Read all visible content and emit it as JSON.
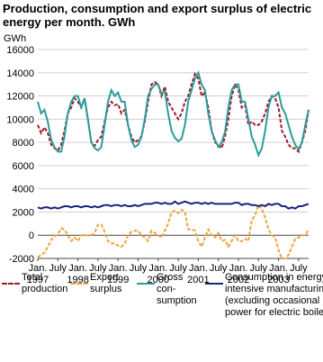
{
  "chart_data": {
    "type": "line",
    "title": "Production, consumption and export surplus of electric energy per month. GWh",
    "y_unit": "GWh",
    "categories": [
      "Jan.",
      null,
      null,
      null,
      null,
      null,
      "July",
      null,
      null,
      null,
      null,
      null,
      "Jan.",
      null,
      null,
      null,
      null,
      null,
      "July",
      null,
      null,
      null,
      null,
      null,
      "Jan.",
      null,
      null,
      null,
      null,
      null,
      "July",
      null,
      null,
      null,
      null,
      null,
      "Jan.",
      null,
      null,
      null,
      null,
      null,
      "July",
      null,
      null,
      null,
      null,
      null,
      "Jan.",
      null,
      null,
      null,
      null,
      null,
      "July",
      null,
      null,
      null,
      null,
      null,
      "Jan.",
      null,
      null,
      null,
      null,
      null,
      "July",
      null,
      null,
      null,
      null,
      null,
      "Jan.",
      null,
      null,
      null,
      null,
      null,
      "July",
      null,
      null,
      null
    ],
    "year_labels": [
      "1997",
      "1998",
      "1999",
      "2000",
      "2001",
      "2002",
      "2003"
    ],
    "ylim": [
      -2000,
      16000
    ],
    "yticks": [
      -2000,
      0,
      2000,
      4000,
      6000,
      8000,
      10000,
      12000,
      14000,
      16000
    ],
    "grid": true,
    "series": [
      {
        "name": "Total production",
        "color": "#a0192a",
        "dashed": true,
        "values": [
          9500,
          8800,
          9300,
          8800,
          7800,
          7500,
          7300,
          7800,
          9000,
          10500,
          11000,
          11800,
          11500,
          11000,
          11800,
          10000,
          8000,
          7700,
          8200,
          8500,
          9800,
          11000,
          11500,
          11200,
          11300,
          10500,
          10800,
          9500,
          8500,
          8000,
          8200,
          8500,
          9800,
          11500,
          13000,
          13200,
          13000,
          12000,
          12800,
          11500,
          11000,
          10500,
          10000,
          10500,
          11500,
          12000,
          13000,
          13900,
          13500,
          12000,
          12300,
          11000,
          9000,
          8000,
          7800,
          7500,
          8500,
          10000,
          12000,
          13000,
          12500,
          11000,
          11200,
          9500,
          9800,
          9500,
          9500,
          9800,
          10500,
          11500,
          12000,
          11800,
          11000,
          9000,
          8500,
          7800,
          7500,
          7500,
          7200,
          8000,
          9000,
          10800
        ]
      },
      {
        "name": "Export surplus",
        "color": "#f2a33a",
        "dashed": true,
        "values": [
          -1900,
          -1700,
          -1500,
          -1000,
          -400,
          -100,
          100,
          600,
          500,
          0,
          -500,
          -200,
          -500,
          0,
          0,
          0,
          0,
          200,
          900,
          900,
          300,
          -500,
          -700,
          -700,
          -900,
          -1000,
          -700,
          0,
          300,
          400,
          400,
          0,
          -200,
          -500,
          400,
          200,
          0,
          -200,
          400,
          1000,
          2000,
          2100,
          1900,
          2200,
          2000,
          500,
          500,
          400,
          -500,
          -1000,
          -200,
          500,
          0,
          -200,
          200,
          -500,
          -400,
          -1000,
          -500,
          0,
          -500,
          -500,
          -300,
          -500,
          1300,
          1700,
          2600,
          2300,
          1500,
          500,
          0,
          -200,
          -1300,
          -2000,
          -2000,
          -1700,
          -1000,
          -300,
          -200,
          0,
          0,
          500
        ]
      },
      {
        "name": "Gross con-sumption",
        "color": "#2a9d9a",
        "dashed": false,
        "values": [
          11500,
          10500,
          10800,
          9800,
          8200,
          7600,
          7200,
          7200,
          8500,
          10500,
          11500,
          12000,
          12000,
          11000,
          11800,
          10000,
          8000,
          7500,
          7300,
          7600,
          9500,
          11500,
          12500,
          12000,
          12300,
          11500,
          11500,
          9500,
          8200,
          7600,
          7800,
          8500,
          10000,
          12000,
          12600,
          13000,
          13000,
          12200,
          12400,
          10500,
          9000,
          8400,
          8100,
          8300,
          9500,
          11500,
          12500,
          13500,
          14000,
          13000,
          12500,
          10500,
          9000,
          8200,
          7600,
          8000,
          8900,
          11000,
          12500,
          13000,
          13000,
          11500,
          11500,
          10000,
          8500,
          7800,
          6900,
          7500,
          9000,
          11000,
          12000,
          12000,
          12300,
          11000,
          10500,
          9500,
          8500,
          7800,
          7400,
          8000,
          9500,
          10800
        ]
      },
      {
        "name": "Consumption in energy-intensive manufacturing (excluding occasional power for electric boilers)",
        "color": "#1a237e",
        "dashed": false,
        "values": [
          2400,
          2300,
          2400,
          2400,
          2300,
          2400,
          2300,
          2400,
          2500,
          2500,
          2400,
          2500,
          2500,
          2400,
          2500,
          2500,
          2400,
          2500,
          2400,
          2500,
          2600,
          2600,
          2500,
          2600,
          2600,
          2500,
          2600,
          2500,
          2500,
          2600,
          2500,
          2600,
          2700,
          2700,
          2700,
          2800,
          2800,
          2700,
          2800,
          2700,
          2700,
          2900,
          2700,
          2800,
          2900,
          2800,
          2700,
          2800,
          2800,
          2700,
          2800,
          2700,
          2800,
          2700,
          2700,
          2700,
          2700,
          2700,
          2700,
          2800,
          2800,
          2600,
          2700,
          2700,
          2600,
          2600,
          2500,
          2600,
          2500,
          2700,
          2600,
          2700,
          2700,
          2500,
          2500,
          2300,
          2400,
          2300,
          2500,
          2500,
          2600,
          2700
        ]
      }
    ]
  }
}
